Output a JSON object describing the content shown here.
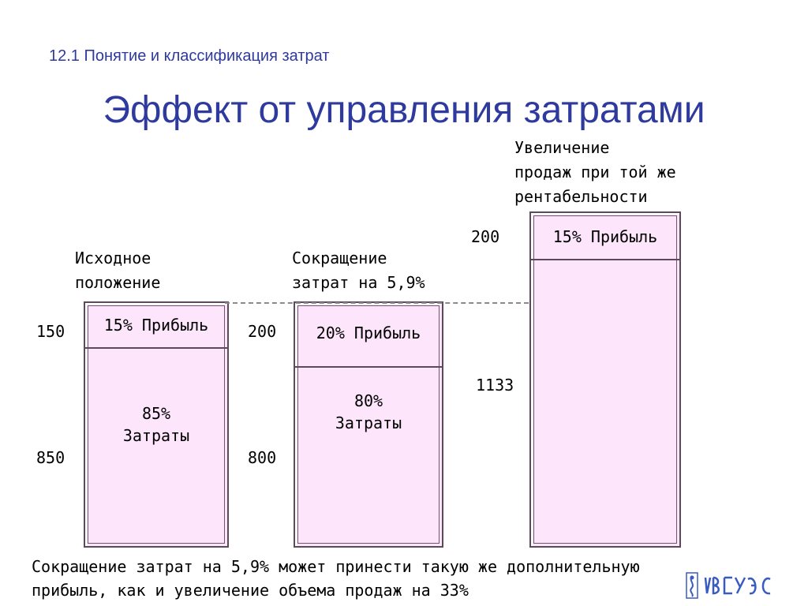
{
  "header": {
    "subtitle": "12.1 Понятие и классификация затрат",
    "title": "Эффект от управления затратами"
  },
  "columns": [
    {
      "caption_line1": "Исходное",
      "caption_line2": "положение",
      "top_value": "150",
      "bottom_value": "850",
      "profit_label": "15% Прибыль",
      "cost_label_line1": "85%",
      "cost_label_line2": "Затраты"
    },
    {
      "caption_line1": "Сокращение",
      "caption_line2": "затрат на 5,9%",
      "top_value": "200",
      "bottom_value": "800",
      "profit_label": "20% Прибыль",
      "cost_label_line1": "80%",
      "cost_label_line2": "Затраты"
    },
    {
      "caption_line1": "Увеличение",
      "caption_line2": "продаж при той же",
      "caption_line3": "рентабельности",
      "top_value": "200",
      "bottom_value": "1133",
      "profit_label": "15% Прибыль"
    }
  ],
  "footer": {
    "line1": "Сокращение затрат на 5,9% может принести такую же дополнительную",
    "line2": "прибыль, как и увеличение объема продаж на 33%"
  },
  "logo": {
    "text": "ВГУЭС"
  },
  "colors": {
    "title": "#2e3a9e",
    "bar_fill": "#fde6fb",
    "bar_border": "#5a4a5a",
    "logo": "#3a5bbf"
  }
}
